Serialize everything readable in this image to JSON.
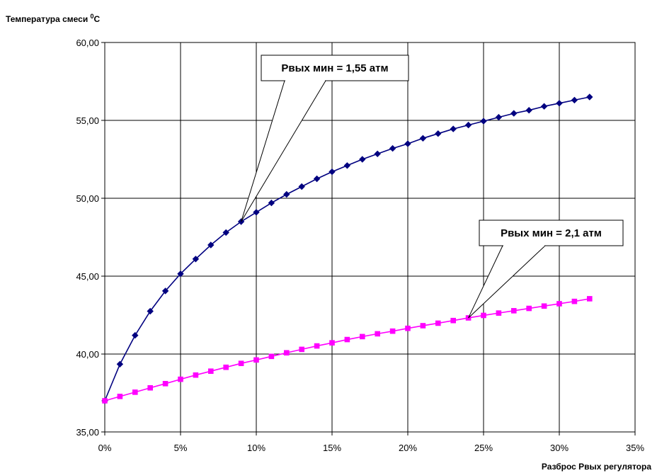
{
  "chart_data": {
    "type": "line",
    "ylabel": {
      "main": "Температура смеси ",
      "sup": "0",
      "unit": "С"
    },
    "xlabel": "Разброс Рвых регулятора",
    "xlim": [
      0,
      35
    ],
    "ylim": [
      35,
      60
    ],
    "x_ticks": [
      "0%",
      "5%",
      "10%",
      "15%",
      "20%",
      "25%",
      "30%",
      "35%"
    ],
    "y_ticks": [
      "35,00",
      "40,00",
      "45,00",
      "50,00",
      "55,00",
      "60,00"
    ],
    "grid": true,
    "colors": {
      "series1": "#000080",
      "series2": "#ff00ff"
    },
    "series": [
      {
        "marker": "diamond",
        "x": [
          0,
          1,
          2,
          3,
          4,
          5,
          6,
          7,
          8,
          9,
          10,
          11,
          12,
          13,
          14,
          15,
          16,
          17,
          18,
          19,
          20,
          21,
          22,
          23,
          24,
          25,
          26,
          27,
          28,
          29,
          30,
          31,
          32
        ],
        "values": [
          37.0,
          39.35,
          41.2,
          42.75,
          44.05,
          45.15,
          46.1,
          47.0,
          47.8,
          48.5,
          49.1,
          49.7,
          50.25,
          50.75,
          51.25,
          51.7,
          52.1,
          52.5,
          52.85,
          53.2,
          53.5,
          53.85,
          54.15,
          54.45,
          54.7,
          54.95,
          55.2,
          55.45,
          55.65,
          55.9,
          56.1,
          56.3,
          56.5
        ]
      },
      {
        "marker": "square",
        "x": [
          0,
          1,
          2,
          3,
          4,
          5,
          6,
          7,
          8,
          9,
          10,
          11,
          12,
          13,
          14,
          15,
          16,
          17,
          18,
          19,
          20,
          21,
          22,
          23,
          24,
          25,
          26,
          27,
          28,
          29,
          30,
          31,
          32
        ],
        "values": [
          37.0,
          37.28,
          37.55,
          37.83,
          38.1,
          38.38,
          38.65,
          38.9,
          39.15,
          39.4,
          39.62,
          39.85,
          40.08,
          40.3,
          40.52,
          40.72,
          40.93,
          41.12,
          41.3,
          41.47,
          41.65,
          41.82,
          41.98,
          42.15,
          42.32,
          42.48,
          42.63,
          42.78,
          42.93,
          43.08,
          43.23,
          43.38,
          43.55
        ]
      }
    ],
    "annotations": [
      {
        "text": "Рвых мин = 1,55 атм",
        "target_series": 0,
        "target_x": 9
      },
      {
        "text": "Рвых мин = 2,1 атм",
        "target_series": 1,
        "target_x": 24
      }
    ]
  }
}
